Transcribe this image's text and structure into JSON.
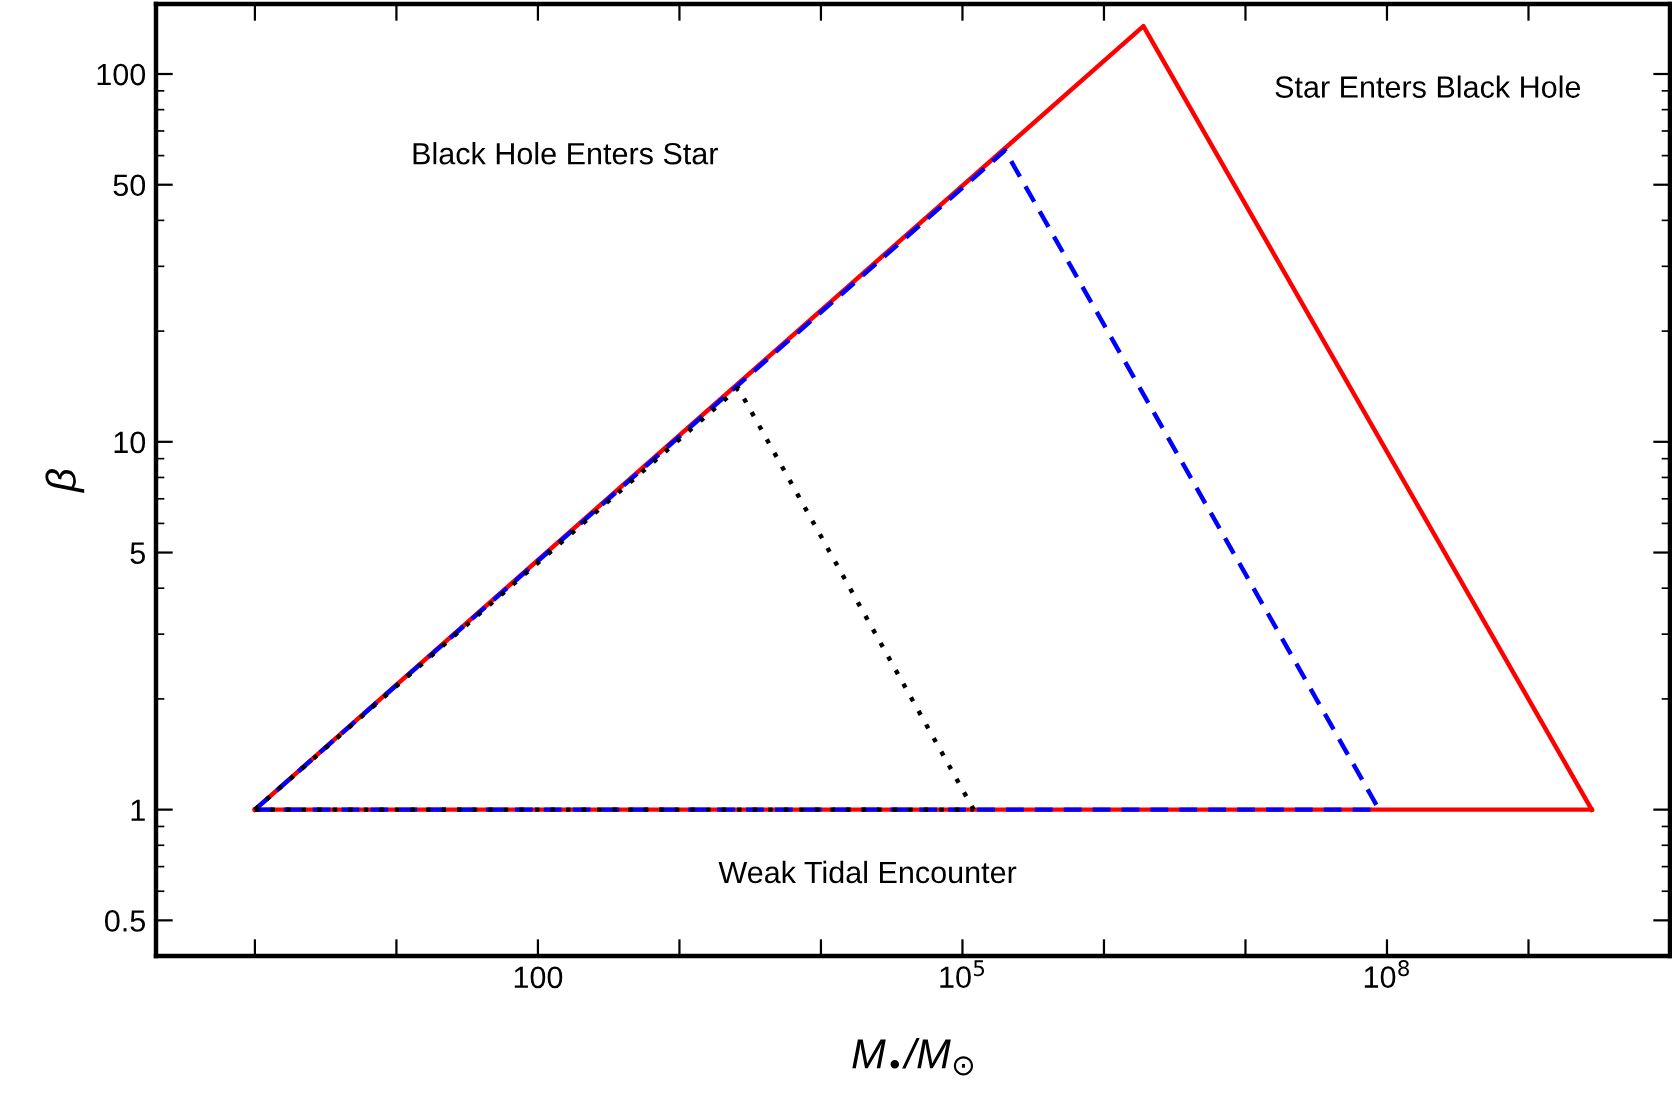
{
  "chart_data": {
    "type": "line",
    "xlabel": "M$_{•}$/M$_{⊙}$",
    "ylabel": "β",
    "log": "xy",
    "grid": false,
    "legend": false,
    "marker": "none",
    "xlim": [
      0.2,
      10000000000.0
    ],
    "ylim": [
      0.4,
      155
    ],
    "xticks": [
      {
        "value": 1,
        "label": null
      },
      {
        "value": 10,
        "label": null
      },
      {
        "value": 100,
        "label": "100"
      },
      {
        "value": 1000,
        "label": null
      },
      {
        "value": 10000,
        "label": null
      },
      {
        "value": 100000,
        "label": "10$^{5}$"
      },
      {
        "value": 1000000,
        "label": null
      },
      {
        "value": 10000000,
        "label": null
      },
      {
        "value": 100000000,
        "label": "10$^{8}$"
      },
      {
        "value": 1000000000,
        "label": null
      }
    ],
    "yticks": [
      0.5,
      1,
      5,
      10,
      50,
      100
    ],
    "annotations": [
      "Black Hole Enters Star",
      "Star Enters Black Hole",
      "Weak Tidal Encounter"
    ],
    "series": [
      {
        "color": "#ff0000",
        "line_style": "solid",
        "x": [
          1,
          1900000,
          2800000000
        ],
        "values": [
          1,
          135,
          1
        ]
      },
      {
        "color": "#ff0000",
        "line_style": "solid",
        "x": [
          1,
          2800000000
        ],
        "values": [
          1,
          1
        ]
      },
      {
        "color": "#0000ff",
        "line_style": "dashed",
        "x": [
          1,
          200000,
          88000000
        ],
        "values": [
          1,
          62,
          1
        ]
      },
      {
        "color": "#0000ff",
        "line_style": "dashed",
        "x": [
          1,
          88000000
        ],
        "values": [
          1,
          1
        ]
      },
      {
        "color": "#000000",
        "line_style": "dotted",
        "x": [
          1,
          2600,
          120000
        ],
        "values": [
          1,
          14,
          1
        ]
      },
      {
        "color": "#000000",
        "line_style": "dotted",
        "x": [
          1,
          120000
        ],
        "values": [
          1,
          1
        ]
      }
    ]
  }
}
